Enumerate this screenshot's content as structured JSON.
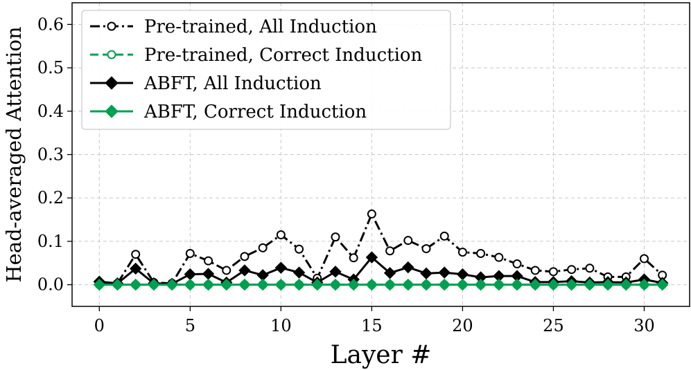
{
  "chart_data": {
    "type": "line",
    "title": "",
    "xlabel": "Layer #",
    "ylabel": "Head-averaged Attention",
    "xlim": [
      -1.5,
      32.5
    ],
    "ylim": [
      -0.05,
      0.65
    ],
    "xticks": [
      0,
      5,
      10,
      15,
      20,
      25,
      30
    ],
    "yticks": [
      0.0,
      0.1,
      0.2,
      0.3,
      0.4,
      0.5,
      0.6
    ],
    "ytick_labels": [
      "0.0",
      "0.1",
      "0.2",
      "0.3",
      "0.4",
      "0.5",
      "0.6"
    ],
    "grid": true,
    "legend_position": "top-left",
    "x": [
      0,
      1,
      2,
      3,
      4,
      5,
      6,
      7,
      8,
      9,
      10,
      11,
      12,
      13,
      14,
      15,
      16,
      17,
      18,
      19,
      20,
      21,
      22,
      23,
      24,
      25,
      26,
      27,
      28,
      29,
      30,
      31
    ],
    "series": [
      {
        "name": "Pre-trained, All Induction",
        "color": "#000000",
        "linestyle": "dashdot",
        "marker": "open-circle",
        "values": [
          0.005,
          0.003,
          0.07,
          0.005,
          0.003,
          0.072,
          0.055,
          0.033,
          0.065,
          0.085,
          0.115,
          0.082,
          0.015,
          0.11,
          0.062,
          0.163,
          0.078,
          0.102,
          0.083,
          0.112,
          0.075,
          0.072,
          0.063,
          0.048,
          0.033,
          0.03,
          0.035,
          0.038,
          0.018,
          0.018,
          0.06,
          0.022
        ]
      },
      {
        "name": "Pre-trained, Correct Induction",
        "color": "#00a050",
        "linestyle": "dashed",
        "marker": "open-circle",
        "values": [
          0,
          0,
          0,
          0,
          0,
          0,
          0,
          0,
          0,
          0,
          0,
          0,
          0,
          0,
          0,
          0,
          0,
          0,
          0,
          0,
          0,
          0,
          0,
          0,
          0,
          0,
          0,
          0,
          0,
          0,
          0,
          0
        ]
      },
      {
        "name": "ABFT, All Induction",
        "color": "#000000",
        "linestyle": "solid",
        "marker": "diamond",
        "values": [
          0.007,
          0.003,
          0.037,
          0.003,
          0.002,
          0.024,
          0.025,
          0.005,
          0.033,
          0.022,
          0.039,
          0.028,
          0.005,
          0.03,
          0.012,
          0.063,
          0.027,
          0.04,
          0.026,
          0.028,
          0.024,
          0.017,
          0.02,
          0.02,
          0.006,
          0.006,
          0.008,
          0.005,
          0.006,
          0.005,
          0.012,
          0.004
        ]
      },
      {
        "name": "ABFT, Correct Induction",
        "color": "#00a050",
        "linestyle": "solid",
        "marker": "diamond",
        "values": [
          0,
          0,
          0,
          0,
          0,
          0,
          0,
          0,
          0,
          0,
          0,
          0,
          0,
          0,
          0,
          0,
          0,
          0,
          0,
          0,
          0,
          0,
          0,
          0,
          0,
          0,
          0,
          0,
          0,
          0,
          0,
          0
        ]
      }
    ]
  }
}
